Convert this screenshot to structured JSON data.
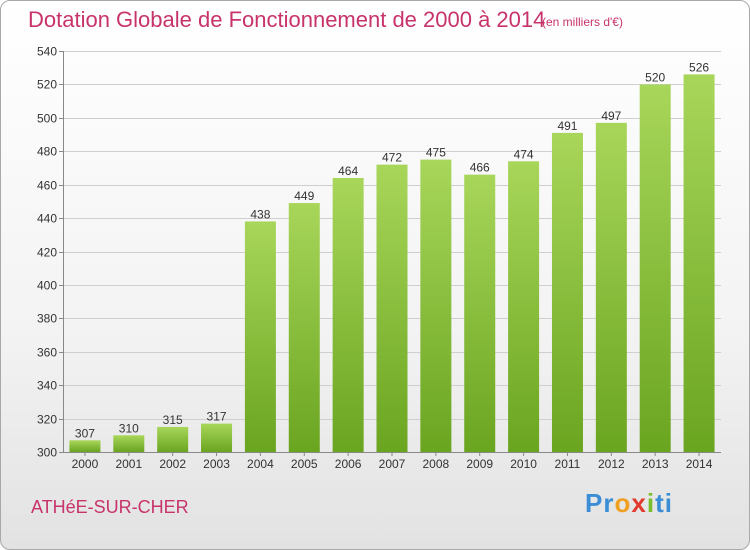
{
  "chart_data": {
    "type": "bar",
    "title": "Dotation Globale de Fonctionnement de 2000 à 2014",
    "subtitle": "(en milliers d'€)",
    "categories": [
      "2000",
      "2001",
      "2002",
      "2003",
      "2004",
      "2005",
      "2006",
      "2007",
      "2008",
      "2009",
      "2010",
      "2011",
      "2012",
      "2013",
      "2014"
    ],
    "values": [
      307,
      310,
      315,
      317,
      438,
      449,
      464,
      472,
      475,
      466,
      474,
      491,
      497,
      520,
      526
    ],
    "ylim": [
      300,
      540
    ],
    "yticks": [
      300,
      320,
      340,
      360,
      380,
      400,
      420,
      440,
      460,
      480,
      500,
      520,
      540
    ],
    "grid": true,
    "colors": {
      "bar_top": "#a8d65a",
      "bar_bottom": "#6aa520",
      "grid": "#cfcfcf",
      "title": "#c8336b"
    }
  },
  "commune": "ATHéE-SUR-CHER",
  "logo": {
    "parts": [
      {
        "text": "Pr",
        "color": "#3b8ed6"
      },
      {
        "text": "o",
        "color": "#f0a020"
      },
      {
        "text": "x",
        "color": "#e23b2e"
      },
      {
        "text": "i",
        "color": "#7abf2a"
      },
      {
        "text": "ti",
        "color": "#3b8ed6"
      }
    ]
  }
}
